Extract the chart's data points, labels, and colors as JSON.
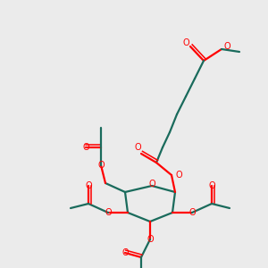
{
  "bg_color": "#ebebeb",
  "bond_color": "#1a6b5c",
  "oxygen_color": "#ff0000",
  "line_width": 1.6,
  "fig_size": [
    3.0,
    3.0
  ],
  "dpi": 100,
  "xlim": [
    0,
    300
  ],
  "ylim": [
    0,
    300
  ]
}
